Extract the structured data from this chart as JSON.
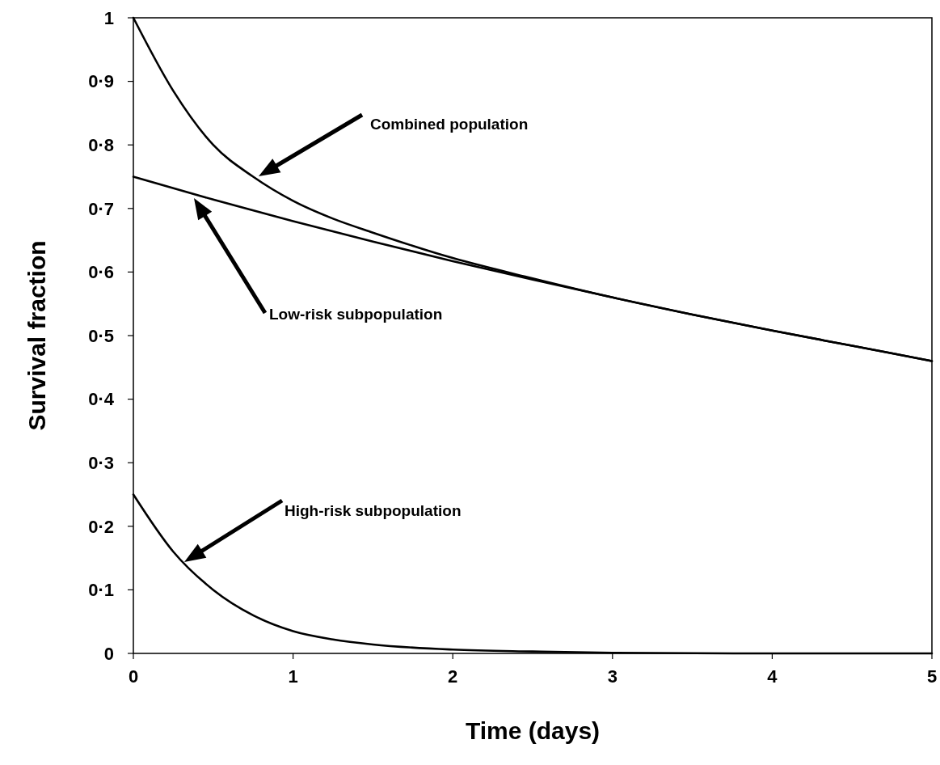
{
  "chart_data": {
    "type": "line",
    "xlabel": "Time (days)",
    "ylabel": "Survival fraction",
    "xlim": [
      0,
      5
    ],
    "xticks": [
      0,
      1,
      2,
      3,
      4,
      5
    ],
    "ylim": [
      0,
      1
    ],
    "yticks": [
      0,
      {
        "value": 0.1,
        "label": "0·1"
      },
      {
        "value": 0.2,
        "label": "0·2"
      },
      {
        "value": 0.3,
        "label": "0·3"
      },
      {
        "value": 0.4,
        "label": "0·4"
      },
      {
        "value": 0.5,
        "label": "0·5"
      },
      {
        "value": 0.6,
        "label": "0·6"
      },
      {
        "value": 0.7,
        "label": "0·7"
      },
      {
        "value": 0.8,
        "label": "0·8"
      },
      {
        "value": 0.9,
        "label": "0·9"
      },
      1
    ],
    "grid": false,
    "marker": "none",
    "line_style": "solid",
    "series": [
      {
        "color": "#000000",
        "x": [
          0,
          0.25,
          0.5,
          0.75,
          1,
          1.25,
          1.5,
          2,
          2.5,
          3,
          3.5,
          4,
          4.5,
          5
        ],
        "values": [
          1.0,
          0.885,
          0.8,
          0.75,
          0.712,
          0.684,
          0.662,
          0.622,
          0.59,
          0.56,
          0.533,
          0.508,
          0.484,
          0.46
        ]
      },
      {
        "color": "#000000",
        "x": [
          0,
          0.5,
          1,
          1.5,
          2,
          2.5,
          3,
          3.5,
          4,
          4.5,
          5
        ],
        "values": [
          0.75,
          0.714,
          0.68,
          0.648,
          0.617,
          0.588,
          0.56,
          0.533,
          0.508,
          0.484,
          0.46
        ]
      },
      {
        "color": "#000000",
        "x": [
          0,
          0.25,
          0.5,
          0.75,
          1,
          1.25,
          1.5,
          2,
          2.5,
          3,
          4,
          5
        ],
        "values": [
          0.25,
          0.16,
          0.1,
          0.06,
          0.035,
          0.022,
          0.014,
          0.006,
          0.003,
          0.001,
          0,
          0
        ]
      }
    ],
    "annotations": [
      "Combined population",
      "Low-risk subpopulation",
      "High-risk subpopulation"
    ]
  }
}
